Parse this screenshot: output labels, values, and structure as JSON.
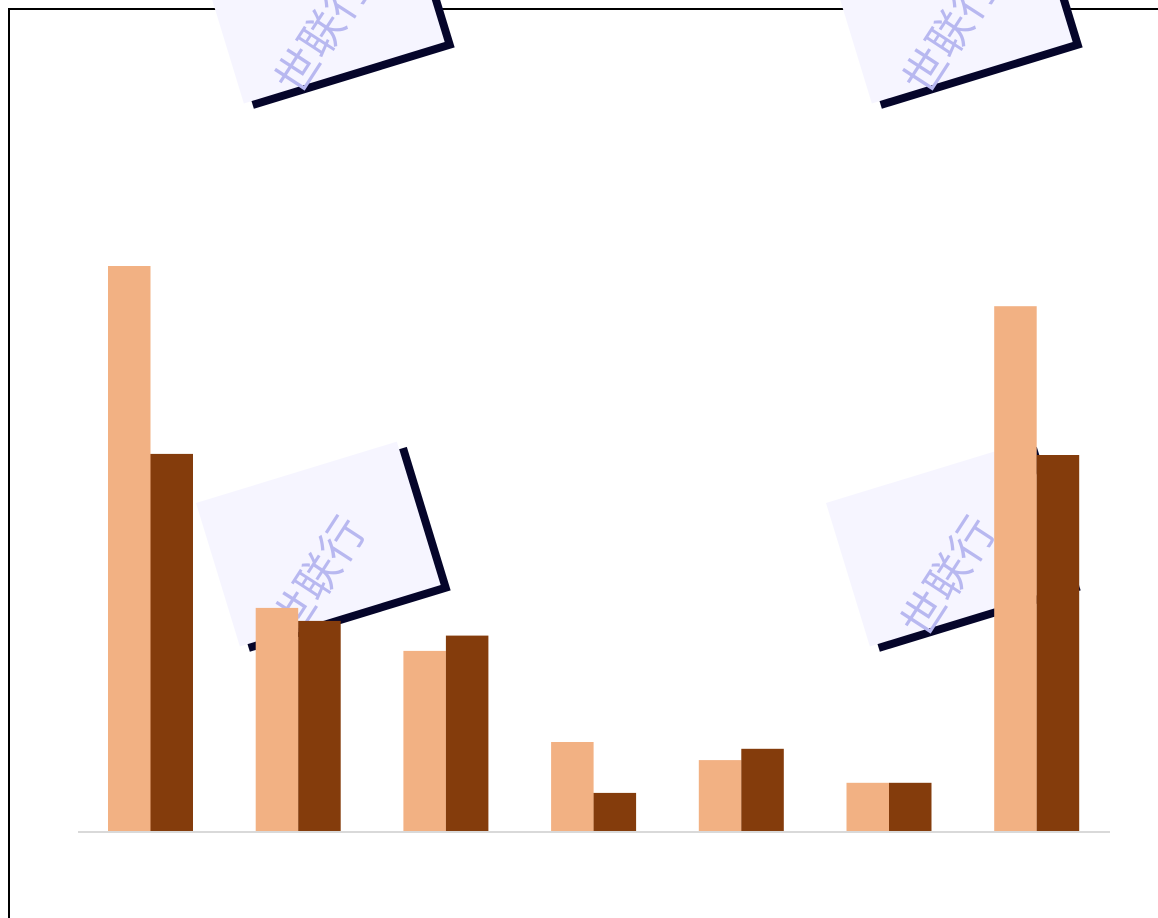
{
  "chart_data": {
    "type": "bar",
    "categories": [
      "",
      "",
      "",
      "",
      "",
      "",
      ""
    ],
    "series": [
      {
        "values": [
          100,
          39.6,
          32.0,
          15.9,
          12.7,
          8.7,
          92.9
        ]
      },
      {
        "values": [
          66.8,
          37.3,
          34.7,
          6.9,
          14.7,
          8.7,
          66.6
        ]
      }
    ],
    "ylim": [
      0,
      100
    ],
    "title": "",
    "xlabel": "",
    "ylabel": "",
    "grid": false,
    "colors": [
      "#f2b183",
      "#843c0c"
    ]
  },
  "watermark": {
    "text": "世联行",
    "card_color": "#f6f5ff",
    "shadow_color": "#05052a",
    "text_color": "#b8b8f0"
  }
}
